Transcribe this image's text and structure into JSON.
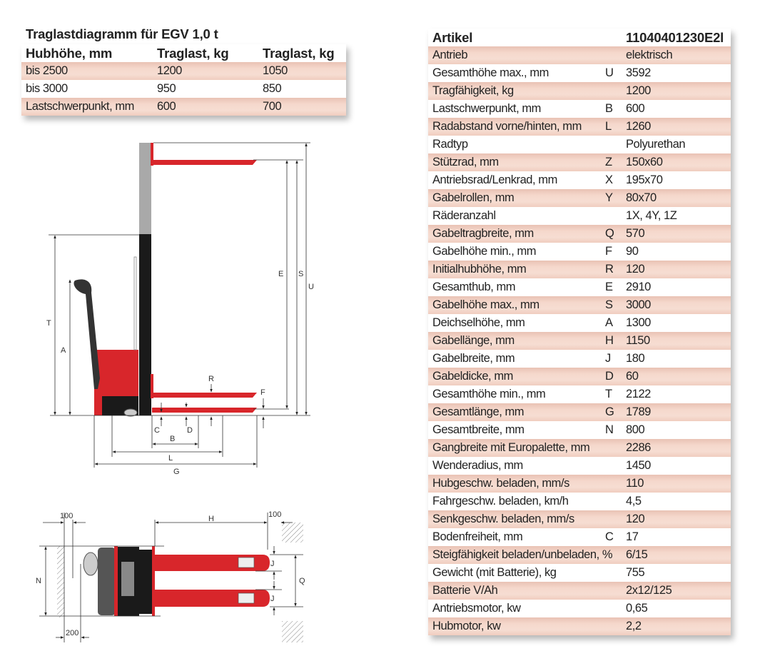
{
  "load_table": {
    "title": "Traglastdiagramm für EGV 1,0 t",
    "headers": [
      "Hubhöhe, mm",
      "Traglast, kg",
      "Traglast, kg"
    ],
    "rows": [
      [
        "bis 2500",
        "1200",
        "1050"
      ],
      [
        "bis 3000",
        "950",
        "850"
      ],
      [
        "Lastschwerpunkt, mm",
        "600",
        "700"
      ]
    ]
  },
  "spec_table": {
    "header": {
      "label": "Artikel",
      "value": "11040401230E2l"
    },
    "rows": [
      [
        "Antrieb",
        "",
        "elektrisch"
      ],
      [
        "Gesamthöhe max., mm",
        "U",
        "3592"
      ],
      [
        "Tragfähigkeit, kg",
        "",
        "1200"
      ],
      [
        "Lastschwerpunkt, mm",
        "B",
        "600"
      ],
      [
        "Radabstand vorne/hinten, mm",
        "L",
        "1260"
      ],
      [
        "Radtyp",
        "",
        "Polyurethan"
      ],
      [
        "Stützrad, mm",
        "Z",
        "150x60"
      ],
      [
        "Antriebsrad/Lenkrad, mm",
        "X",
        "195x70"
      ],
      [
        "Gabelrollen, mm",
        "Y",
        "80x70"
      ],
      [
        "Räderanzahl",
        "",
        "1X, 4Y, 1Z"
      ],
      [
        "Gabeltragbreite, mm",
        "Q",
        "570"
      ],
      [
        "Gabelhöhe min., mm",
        "F",
        "90"
      ],
      [
        "Initialhubhöhe, mm",
        "R",
        "120"
      ],
      [
        "Gesamthub, mm",
        "E",
        "2910"
      ],
      [
        "Gabelhöhe max., mm",
        "S",
        "3000"
      ],
      [
        "Deichselhöhe, mm",
        "A",
        "1300"
      ],
      [
        "Gabellänge, mm",
        "H",
        "1150"
      ],
      [
        "Gabelbreite, mm",
        "J",
        "180"
      ],
      [
        "Gabeldicke, mm",
        "D",
        "60"
      ],
      [
        "Gesamthöhe min., mm",
        "T",
        "2122"
      ],
      [
        "Gesamtlänge, mm",
        "G",
        "1789"
      ],
      [
        "Gesamtbreite, mm",
        "N",
        "800"
      ],
      [
        "Gangbreite mit Europalette, mm",
        "",
        "2286"
      ],
      [
        "Wenderadius, mm",
        "",
        "1450"
      ],
      [
        "Hubgeschw. beladen, mm/s",
        "",
        "110"
      ],
      [
        "Fahrgeschw. beladen, km/h",
        "",
        "4,5"
      ],
      [
        "Senkgeschw. beladen, mm/s",
        "",
        "120"
      ],
      [
        "Bodenfreiheit, mm",
        "C",
        "17"
      ],
      [
        "Steigfähigkeit beladen/unbeladen, %",
        "",
        "6/15"
      ],
      [
        "Gewicht (mit Batterie), kg",
        "",
        "755"
      ],
      [
        "Batterie V/Ah",
        "",
        "2x12/125"
      ],
      [
        "Antriebsmotor, kw",
        "",
        "0,65"
      ],
      [
        "Hubmotor, kw",
        "",
        "2,2"
      ]
    ]
  },
  "side_diagram": {
    "labels": {
      "T": "T",
      "A": "A",
      "E": "E",
      "S": "S",
      "U": "U",
      "R": "R",
      "F": "F",
      "C": "C",
      "D": "D",
      "B": "B",
      "L": "L",
      "G": "G"
    }
  },
  "top_diagram": {
    "labels": {
      "clear_left": "100",
      "H": "H",
      "clear_right": "100",
      "N": "N",
      "Q": "Q",
      "J1": "J",
      "J2": "J",
      "tiller": "200"
    }
  },
  "colors": {
    "row_tint": "#f2d2c6",
    "truck_red": "#d8262b",
    "mast_grey": "#a9a9a9"
  }
}
